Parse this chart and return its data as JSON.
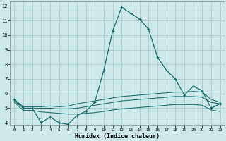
{
  "xlabel": "Humidex (Indice chaleur)",
  "bg_color": "#cce8e8",
  "grid_color": "#aacccc",
  "line_color": "#1a6b6b",
  "xlim": [
    0,
    23
  ],
  "ylim": [
    4,
    12
  ],
  "yticks": [
    4,
    5,
    6,
    7,
    8,
    9,
    10,
    11,
    12
  ],
  "xticks": [
    0,
    1,
    2,
    3,
    4,
    5,
    6,
    7,
    8,
    9,
    10,
    11,
    12,
    13,
    14,
    15,
    16,
    17,
    18,
    19,
    20,
    21,
    22,
    23
  ],
  "line_main": [
    5.6,
    5.0,
    5.0,
    4.0,
    4.4,
    4.0,
    3.9,
    4.5,
    4.8,
    5.4,
    7.6,
    10.3,
    11.9,
    11.5,
    11.1,
    10.4,
    8.5,
    7.6,
    7.0,
    5.9,
    6.5,
    6.2,
    5.0,
    5.3
  ],
  "line2": [
    5.6,
    5.1,
    5.1,
    5.1,
    5.15,
    5.1,
    5.15,
    5.3,
    5.4,
    5.5,
    5.6,
    5.7,
    5.8,
    5.85,
    5.9,
    5.95,
    6.0,
    6.05,
    6.1,
    6.1,
    6.15,
    6.1,
    5.6,
    5.4
  ],
  "line3": [
    5.5,
    5.0,
    5.0,
    5.0,
    5.0,
    4.95,
    4.95,
    5.0,
    5.1,
    5.2,
    5.3,
    5.4,
    5.5,
    5.55,
    5.6,
    5.65,
    5.7,
    5.75,
    5.8,
    5.8,
    5.8,
    5.75,
    5.4,
    5.3
  ],
  "line4": [
    5.4,
    4.85,
    4.85,
    4.75,
    4.7,
    4.65,
    4.6,
    4.6,
    4.65,
    4.7,
    4.78,
    4.88,
    4.95,
    5.0,
    5.05,
    5.1,
    5.15,
    5.2,
    5.25,
    5.25,
    5.25,
    5.2,
    4.88,
    4.78
  ]
}
